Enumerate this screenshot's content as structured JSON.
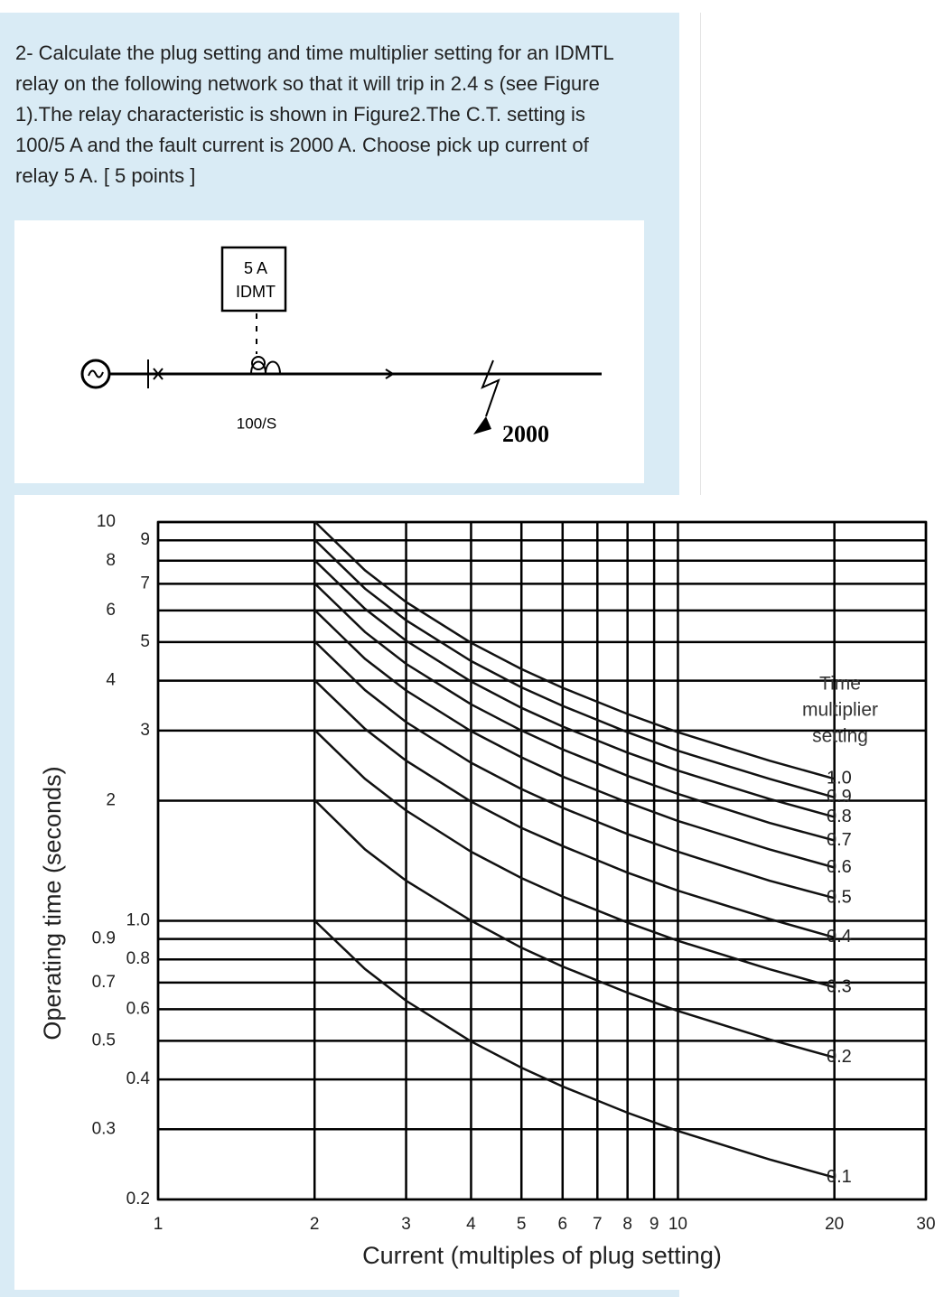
{
  "question": {
    "text": "2- Calculate the plug setting and time multiplier setting for an IDMTL relay on the following network so that it will trip in 2.4 s (see Figure 1).The relay characteristic is shown in Figure2.The C.T. setting is 100/5 A and the fault current is 2000 A. Choose pick up current of relay 5 A.   [ 5 points ]"
  },
  "figure1": {
    "relay_rating": "5 A",
    "relay_type": "IDMT",
    "ct_label": "100/S",
    "fault_current": "2000"
  },
  "chart_data": {
    "type": "line",
    "log_x": true,
    "log_y": true,
    "grid": true,
    "y_label": "Operating time (seconds)",
    "x_label": "Current (multiples of plug setting)",
    "annotation": [
      "Time",
      "multiplier",
      "setting"
    ],
    "xlim": [
      1,
      30
    ],
    "ylim": [
      0.2,
      10
    ],
    "xticks": [
      1,
      2,
      3,
      4,
      5,
      6,
      7,
      8,
      9,
      10,
      20,
      30
    ],
    "yticks": [
      0.2,
      0.3,
      0.4,
      0.5,
      0.6,
      0.7,
      0.8,
      0.9,
      {
        "value": 1,
        "label": "1.0"
      },
      2,
      3,
      4,
      5,
      6,
      7,
      8,
      9,
      10
    ],
    "color": "#111111",
    "x": [
      2,
      2.5,
      3,
      4,
      5,
      6,
      8,
      10,
      15,
      20
    ],
    "series": [
      {
        "name": "1.0",
        "values": [
          10.03,
          7.57,
          6.3,
          4.98,
          4.28,
          3.84,
          3.3,
          2.97,
          2.52,
          2.27
        ]
      },
      {
        "name": "0.9",
        "values": [
          9.03,
          6.81,
          5.67,
          4.48,
          3.85,
          3.46,
          2.97,
          2.67,
          2.27,
          2.04
        ]
      },
      {
        "name": "0.8",
        "values": [
          8.02,
          6.06,
          5.04,
          3.98,
          3.42,
          3.07,
          2.64,
          2.38,
          2.02,
          1.82
        ]
      },
      {
        "name": "0.7",
        "values": [
          7.02,
          5.3,
          4.41,
          3.49,
          3.0,
          2.69,
          2.31,
          2.08,
          1.76,
          1.59
        ]
      },
      {
        "name": "0.6",
        "values": [
          6.02,
          4.54,
          3.78,
          2.99,
          2.57,
          2.3,
          1.98,
          1.78,
          1.51,
          1.36
        ]
      },
      {
        "name": "0.5",
        "values": [
          5.02,
          3.79,
          3.15,
          2.49,
          2.14,
          1.92,
          1.65,
          1.49,
          1.26,
          1.14
        ]
      },
      {
        "name": "0.4",
        "values": [
          4.01,
          3.03,
          2.52,
          1.99,
          1.71,
          1.54,
          1.32,
          1.19,
          1.01,
          0.908
        ]
      },
      {
        "name": "0.3",
        "values": [
          3.01,
          2.27,
          1.89,
          1.49,
          1.28,
          1.15,
          0.99,
          0.891,
          0.756,
          0.681
        ]
      },
      {
        "name": "0.2",
        "values": [
          2.01,
          1.51,
          1.26,
          1.0,
          0.856,
          0.768,
          0.66,
          0.594,
          0.504,
          0.454
        ]
      },
      {
        "name": "0.1",
        "values": [
          1.0,
          0.757,
          0.63,
          0.498,
          0.428,
          0.384,
          0.33,
          0.297,
          0.252,
          0.227
        ]
      }
    ]
  }
}
